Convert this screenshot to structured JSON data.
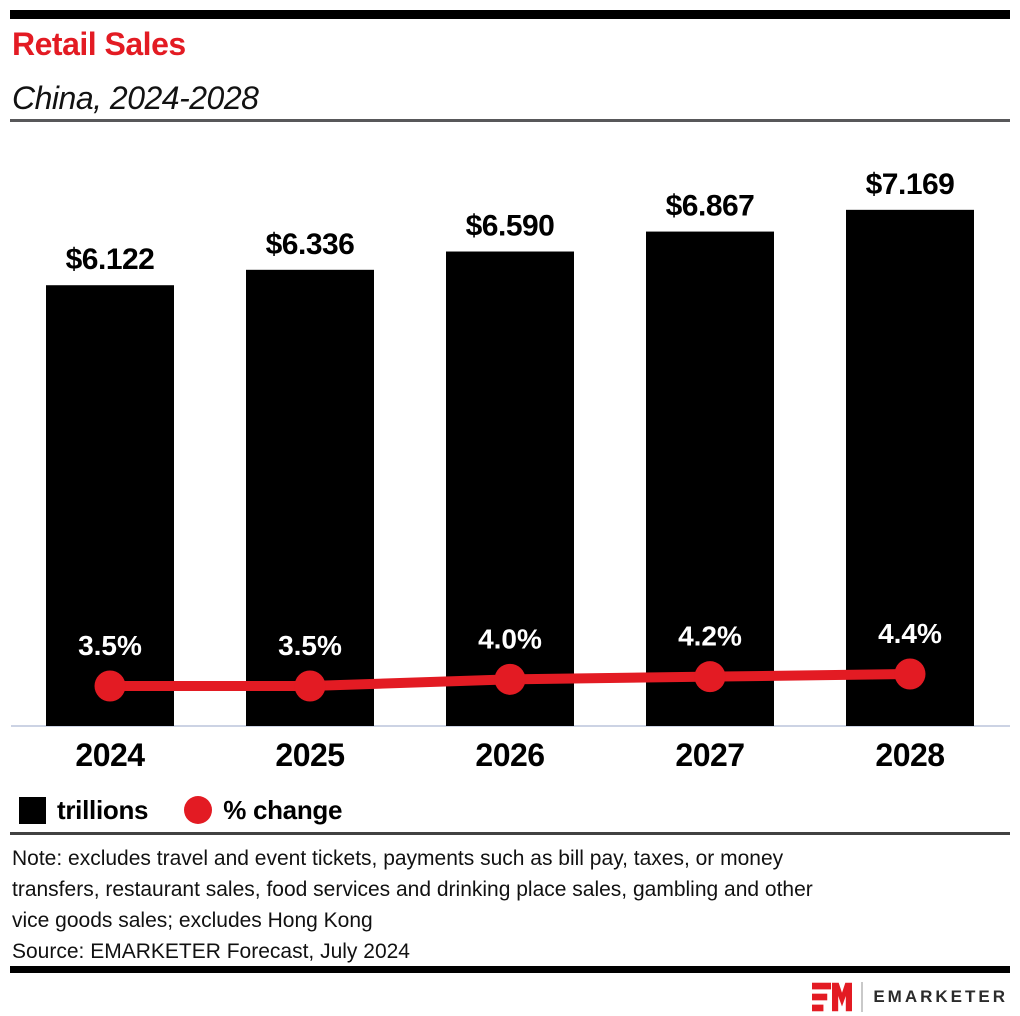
{
  "header": {
    "title": "Retail Sales",
    "subtitle": "China, 2024-2028",
    "accent_color": "#e31b23"
  },
  "chart_data": {
    "type": "combo-bar-line",
    "categories": [
      "2024",
      "2025",
      "2026",
      "2027",
      "2028"
    ],
    "series": [
      {
        "name": "trillions",
        "type": "bar",
        "color": "#000000",
        "values": [
          6.122,
          6.336,
          6.59,
          6.867,
          7.169
        ],
        "labels": [
          "$6.122",
          "$6.336",
          "$6.590",
          "$6.867",
          "$7.169"
        ]
      },
      {
        "name": "% change",
        "type": "line",
        "color": "#e31b23",
        "values": [
          3.5,
          3.5,
          4.0,
          4.2,
          4.4
        ],
        "labels": [
          "3.5%",
          "3.5%",
          "4.0%",
          "4.2%",
          "4.4%"
        ]
      }
    ],
    "legend": [
      {
        "label": "trillions",
        "swatch": "square",
        "color": "#000000"
      },
      {
        "label": "% change",
        "swatch": "circle",
        "color": "#e31b23"
      }
    ],
    "axis": {
      "baseline_color": "#ccd3e4",
      "bar_axis_origin": 0,
      "grid": false,
      "legend_position": "bottom-left"
    }
  },
  "note": {
    "lines": [
      "Note: excludes travel and event tickets, payments such as bill pay, taxes, or money",
      "transfers, restaurant sales, food services and drinking place sales, gambling and other",
      "vice goods sales; excludes Hong Kong"
    ],
    "source": "Source: EMARKETER Forecast, July 2024"
  },
  "footer": {
    "brand": "EMARKETER"
  }
}
